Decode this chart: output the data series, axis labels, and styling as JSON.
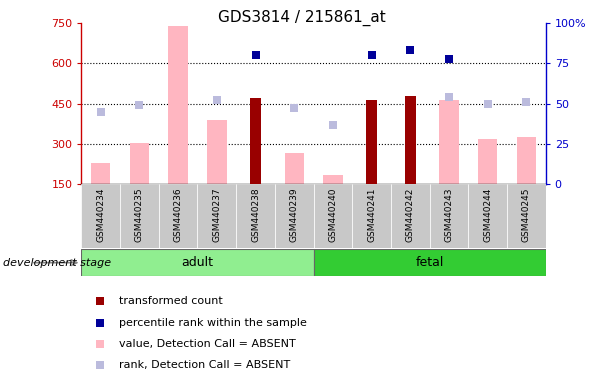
{
  "title": "GDS3814 / 215861_at",
  "samples": [
    "GSM440234",
    "GSM440235",
    "GSM440236",
    "GSM440237",
    "GSM440238",
    "GSM440239",
    "GSM440240",
    "GSM440241",
    "GSM440242",
    "GSM440243",
    "GSM440244",
    "GSM440245"
  ],
  "n_adult": 6,
  "n_fetal": 6,
  "transformed_count": [
    null,
    null,
    null,
    null,
    470,
    null,
    null,
    465,
    480,
    null,
    null,
    null
  ],
  "percentile_rank": [
    null,
    null,
    null,
    null,
    80,
    null,
    null,
    80,
    83,
    78,
    null,
    null
  ],
  "absent_value": [
    230,
    305,
    740,
    390,
    null,
    265,
    185,
    null,
    null,
    465,
    320,
    325
  ],
  "absent_rank": [
    420,
    445,
    null,
    465,
    null,
    435,
    370,
    null,
    null,
    475,
    450,
    455
  ],
  "ylim_left": [
    150,
    750
  ],
  "ylim_right": [
    0,
    100
  ],
  "yticks_left": [
    150,
    300,
    450,
    600,
    750
  ],
  "yticks_right": [
    0,
    25,
    50,
    75,
    100
  ],
  "color_dark_red": "#990000",
  "color_dark_blue": "#000099",
  "color_light_pink": "#FFB6C1",
  "color_light_blue": "#BBBBDD",
  "color_adult_bg": "#90EE90",
  "color_fetal_bg": "#33CC33",
  "color_axis_left": "#CC0000",
  "color_axis_right": "#0000CC",
  "color_grid": "black",
  "color_xticklabel_bg": "#C8C8C8",
  "color_stage_border": "#666666",
  "legend_items": [
    "transformed count",
    "percentile rank within the sample",
    "value, Detection Call = ABSENT",
    "rank, Detection Call = ABSENT"
  ],
  "development_stage_label": "development stage"
}
